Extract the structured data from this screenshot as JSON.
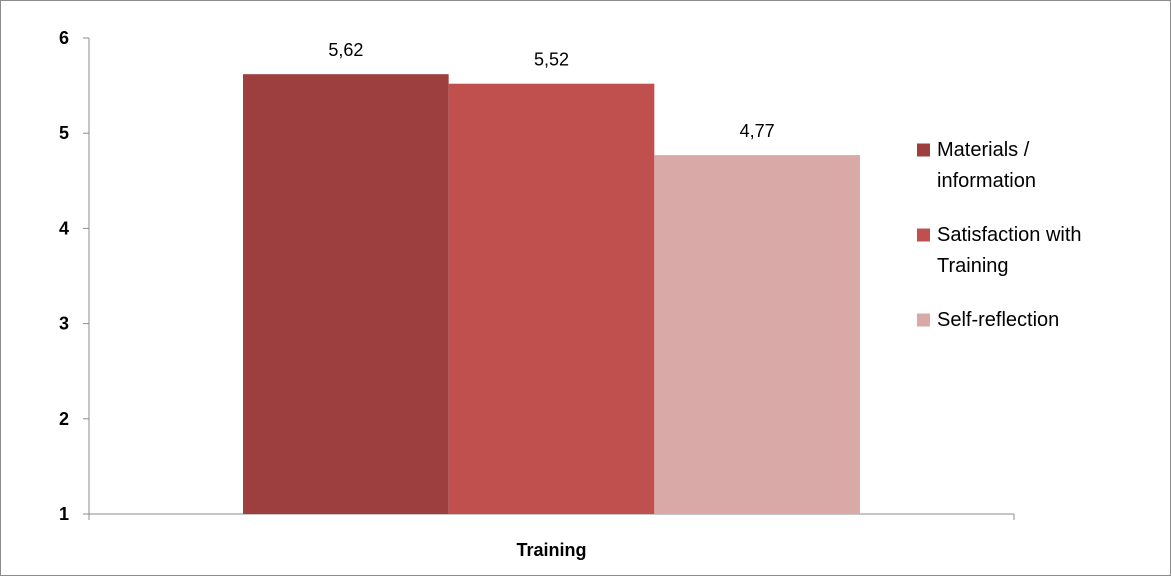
{
  "chart_data": {
    "type": "bar",
    "title": "",
    "xlabel": "",
    "ylabel": "",
    "categories": [
      "Training"
    ],
    "ylim": [
      1,
      6
    ],
    "yticks": [
      1,
      2,
      3,
      4,
      5,
      6
    ],
    "ytick_labels": [
      "1",
      "2",
      "3",
      "4",
      "5",
      "6"
    ],
    "grid": false,
    "legend_position": "right",
    "series": [
      {
        "name": "Materials / information",
        "legend_lines": [
          "Materials /",
          "information"
        ],
        "values": [
          5.62
        ],
        "value_labels": [
          "5,62"
        ],
        "color": "#9E3F3F"
      },
      {
        "name": "Satisfaction with Training",
        "legend_lines": [
          "Satisfaction with",
          "Training"
        ],
        "values": [
          5.52
        ],
        "value_labels": [
          "5,52"
        ],
        "color": "#C0504D"
      },
      {
        "name": "Self-reflection",
        "legend_lines": [
          "Self-reflection"
        ],
        "values": [
          4.77
        ],
        "value_labels": [
          "4,77"
        ],
        "color": "#D9A9A8"
      }
    ]
  }
}
